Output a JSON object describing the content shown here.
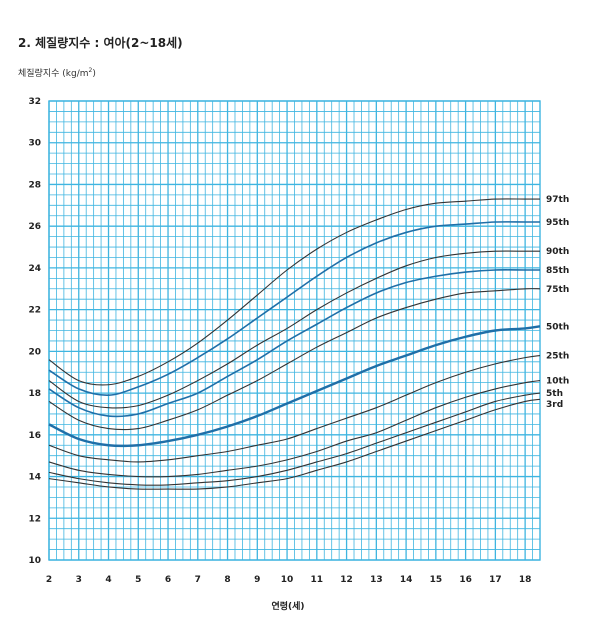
{
  "chart_data": {
    "type": "line",
    "title": "2. 체질량지수 : 여아(2~18세)",
    "ylabel_text": "체질량지수 (kg/m",
    "ylabel_sup": "2",
    "ylabel_close": ")",
    "xlabel": "연령(세)",
    "xlim": [
      2,
      18.5
    ],
    "ylim": [
      10,
      32
    ],
    "x_ticks": [
      2,
      3,
      4,
      5,
      6,
      7,
      8,
      9,
      10,
      11,
      12,
      13,
      14,
      15,
      16,
      17,
      18
    ],
    "y_ticks": [
      10,
      12,
      14,
      16,
      18,
      20,
      22,
      24,
      26,
      28,
      30,
      32
    ],
    "grid": true,
    "grid_color": "#3fb5e0",
    "line_color": "#333333",
    "highlight_color": "#1f6fa8",
    "x": [
      2,
      3,
      4,
      5,
      6,
      7,
      8,
      9,
      10,
      11,
      12,
      13,
      14,
      15,
      16,
      17,
      18,
      18.5
    ],
    "series": [
      {
        "name": "97th",
        "values": [
          19.6,
          18.6,
          18.4,
          18.8,
          19.5,
          20.4,
          21.5,
          22.7,
          23.9,
          24.9,
          25.7,
          26.3,
          26.8,
          27.1,
          27.2,
          27.3,
          27.3,
          27.3
        ]
      },
      {
        "name": "95th",
        "values": [
          19.1,
          18.2,
          17.9,
          18.3,
          18.9,
          19.7,
          20.6,
          21.6,
          22.6,
          23.6,
          24.5,
          25.2,
          25.7,
          26.0,
          26.1,
          26.2,
          26.2,
          26.2
        ]
      },
      {
        "name": "90th",
        "values": [
          18.6,
          17.6,
          17.3,
          17.4,
          17.9,
          18.6,
          19.4,
          20.3,
          21.1,
          22.0,
          22.8,
          23.5,
          24.1,
          24.5,
          24.7,
          24.8,
          24.8,
          24.8
        ]
      },
      {
        "name": "85th",
        "values": [
          18.2,
          17.3,
          16.9,
          17.0,
          17.5,
          18.0,
          18.8,
          19.6,
          20.5,
          21.3,
          22.1,
          22.8,
          23.3,
          23.6,
          23.8,
          23.9,
          23.9,
          23.9
        ]
      },
      {
        "name": "75th",
        "values": [
          17.6,
          16.7,
          16.3,
          16.3,
          16.7,
          17.2,
          17.9,
          18.6,
          19.4,
          20.2,
          20.9,
          21.6,
          22.1,
          22.5,
          22.8,
          22.9,
          23.0,
          23.0
        ]
      },
      {
        "name": "50th",
        "values": [
          16.5,
          15.8,
          15.5,
          15.5,
          15.7,
          16.0,
          16.4,
          16.9,
          17.5,
          18.1,
          18.7,
          19.3,
          19.8,
          20.3,
          20.7,
          21.0,
          21.1,
          21.2
        ]
      },
      {
        "name": "25th",
        "values": [
          15.5,
          15.0,
          14.8,
          14.7,
          14.8,
          15.0,
          15.2,
          15.5,
          15.8,
          16.3,
          16.8,
          17.3,
          17.9,
          18.5,
          19.0,
          19.4,
          19.7,
          19.8
        ]
      },
      {
        "name": "10th",
        "values": [
          14.7,
          14.3,
          14.1,
          14.0,
          14.0,
          14.1,
          14.3,
          14.5,
          14.8,
          15.2,
          15.7,
          16.1,
          16.7,
          17.3,
          17.8,
          18.2,
          18.5,
          18.6
        ]
      },
      {
        "name": "5th",
        "values": [
          14.2,
          13.9,
          13.7,
          13.6,
          13.6,
          13.7,
          13.8,
          14.0,
          14.3,
          14.7,
          15.1,
          15.6,
          16.1,
          16.6,
          17.1,
          17.6,
          17.9,
          18.0
        ]
      },
      {
        "name": "3rd",
        "values": [
          13.9,
          13.7,
          13.5,
          13.4,
          13.4,
          13.4,
          13.5,
          13.7,
          13.9,
          14.3,
          14.7,
          15.2,
          15.7,
          16.2,
          16.7,
          17.2,
          17.6,
          17.7
        ]
      }
    ]
  }
}
